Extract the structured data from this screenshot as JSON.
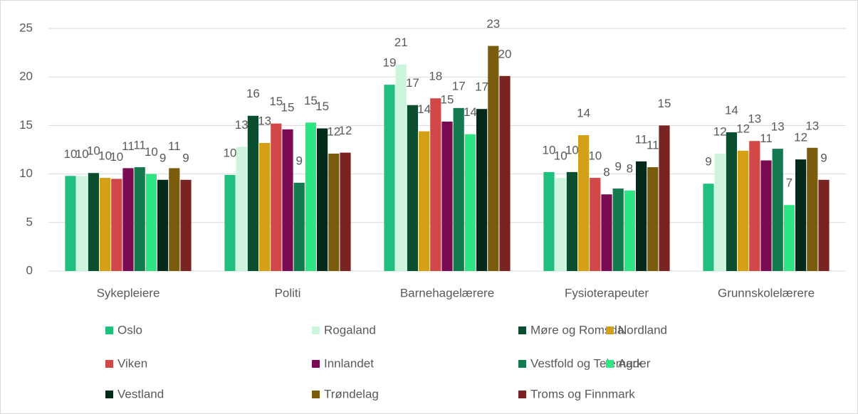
{
  "chart_data": {
    "type": "bar",
    "categories": [
      "Sykepleiere",
      "Politi",
      "Barnehagelærere",
      "Fysioterapeuter",
      "Grunnskolelærere"
    ],
    "ylim": [
      0,
      25
    ],
    "yticks": [
      0,
      5,
      10,
      15,
      20,
      25
    ],
    "grid": true,
    "legend": "bottom",
    "series": [
      {
        "name": "Oslo",
        "color": "#1fbf7d",
        "values": [
          9.8,
          9.9,
          19.2,
          10.2,
          9.0
        ],
        "value_labels": [
          "10",
          "10",
          "19",
          "10",
          "9"
        ]
      },
      {
        "name": "Rogaland",
        "color": "#cdf5dd",
        "values": [
          9.8,
          12.8,
          21.3,
          9.6,
          12.1
        ],
        "value_labels": [
          "10",
          "13",
          "21",
          "10",
          "12"
        ]
      },
      {
        "name": "Møre og Romsdal",
        "color": "#0b4d2f",
        "values": [
          10.1,
          16.0,
          17.1,
          10.2,
          14.3
        ],
        "value_labels": [
          "10",
          "16",
          "17",
          "10",
          "14"
        ]
      },
      {
        "name": "Nordland",
        "color": "#d4a017",
        "values": [
          9.6,
          13.2,
          14.4,
          14.0,
          12.4
        ],
        "value_labels": [
          "10",
          "13",
          "14",
          "14",
          "12"
        ]
      },
      {
        "name": "Viken",
        "color": "#d14848",
        "values": [
          9.5,
          15.2,
          17.8,
          9.6,
          13.4
        ],
        "value_labels": [
          "10",
          "15",
          "18",
          "10",
          "13"
        ]
      },
      {
        "name": "Innlandet",
        "color": "#7a0a52",
        "values": [
          10.6,
          14.6,
          15.4,
          7.9,
          11.4
        ],
        "value_labels": [
          "11",
          "15",
          "15",
          "8",
          "11"
        ]
      },
      {
        "name": "Vestfold og Telemark",
        "color": "#137a50",
        "values": [
          10.7,
          9.1,
          16.8,
          8.5,
          12.6
        ],
        "value_labels": [
          "11",
          "9",
          "17",
          "9",
          "13"
        ]
      },
      {
        "name": "Agder",
        "color": "#2ee584",
        "values": [
          10.0,
          15.3,
          14.1,
          8.3,
          6.8
        ],
        "value_labels": [
          "10",
          "15",
          "14",
          "8",
          "7"
        ]
      },
      {
        "name": "Vestland",
        "color": "#022a19",
        "values": [
          9.4,
          14.7,
          16.7,
          11.3,
          11.5
        ],
        "value_labels": [
          "9",
          "15",
          "17",
          "11",
          "12"
        ]
      },
      {
        "name": "Trøndelag",
        "color": "#7a5c0a",
        "values": [
          10.6,
          12.1,
          23.2,
          10.7,
          12.7
        ],
        "value_labels": [
          "11",
          "12",
          "23",
          "11",
          "13"
        ]
      },
      {
        "name": "Troms og Finnmark",
        "color": "#7a2323",
        "values": [
          9.4,
          12.2,
          20.1,
          15.0,
          9.4
        ],
        "value_labels": [
          "9",
          "12",
          "20",
          "15",
          "9"
        ]
      }
    ]
  }
}
